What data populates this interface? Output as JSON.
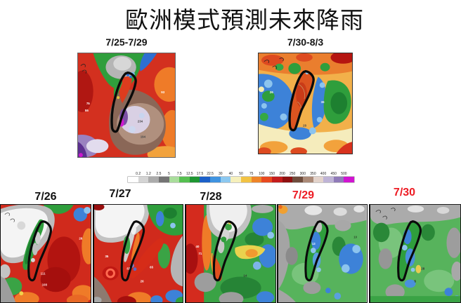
{
  "title": "歐洲模式預測未來降雨",
  "top_maps": [
    {
      "label": "7/25-7/29",
      "annotations": [
        "93",
        "75",
        "55",
        "234",
        "194"
      ]
    },
    {
      "label": "7/30-8/3",
      "annotations": [
        "26",
        "36",
        "28"
      ]
    }
  ],
  "colorbar": {
    "tick_labels": [
      "0.2",
      "1.2",
      "2.5",
      "5",
      "7.5",
      "12.5",
      "17.5",
      "22.5",
      "30",
      "40",
      "50",
      "75",
      "100",
      "150",
      "200",
      "250",
      "300",
      "350",
      "400",
      "450",
      "500"
    ],
    "colors": [
      "#ffffff",
      "#d4d4d4",
      "#ababab",
      "#747474",
      "#a9dd9b",
      "#55bf50",
      "#1e9632",
      "#1b60c8",
      "#3f93e0",
      "#8cc8f0",
      "#f6f0bc",
      "#f2c243",
      "#ee8428",
      "#e8491f",
      "#c41c1c",
      "#8f1010",
      "#6f4c3c",
      "#ab8a78",
      "#e3d3cb",
      "#beb3d6",
      "#8f7ab8",
      "#d114d1"
    ]
  },
  "bottom_maps": [
    {
      "label": "7/26",
      "label_color": "#111111",
      "annotations": [
        "26",
        "111",
        "108"
      ]
    },
    {
      "label": "7/27",
      "label_color": "#111111",
      "annotations": [
        "35",
        "87",
        "65",
        "26"
      ]
    },
    {
      "label": "7/28",
      "label_color": "#111111",
      "annotations": [
        "40",
        "71",
        "14"
      ]
    },
    {
      "label": "7/29",
      "label_color": "#ed1c24",
      "annotations": [
        "13",
        "10"
      ]
    },
    {
      "label": "7/30",
      "label_color": "#ed1c24",
      "annotations": [
        "28",
        "5"
      ]
    }
  ]
}
